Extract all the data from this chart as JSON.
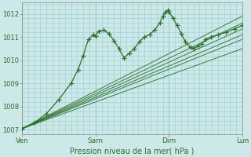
{
  "xlabel": "Pression niveau de la mer( hPa )",
  "background_color": "#cce8e8",
  "plot_bg_color": "#cce8e8",
  "grid_color": "#99cccc",
  "line_color": "#2d6e2d",
  "marker_color": "#2d6e2d",
  "ylim": [
    1006.8,
    1012.5
  ],
  "yticks": [
    1007,
    1008,
    1009,
    1010,
    1011,
    1012
  ],
  "day_labels": [
    "Ven",
    "Sam",
    "Dim",
    "Lun"
  ],
  "day_positions": [
    0,
    72,
    144,
    216
  ],
  "total_hours": 216,
  "forecast_starts": [
    1007.05,
    1007.05,
    1007.05,
    1007.05,
    1007.05,
    1007.05
  ],
  "forecast_ends": [
    1010.5,
    1010.9,
    1011.1,
    1011.35,
    1011.6,
    1011.9
  ],
  "obs_control_points": [
    [
      0,
      1007.05
    ],
    [
      12,
      1007.3
    ],
    [
      24,
      1007.7
    ],
    [
      36,
      1008.3
    ],
    [
      48,
      1009.0
    ],
    [
      55,
      1009.6
    ],
    [
      60,
      1010.2
    ],
    [
      65,
      1010.9
    ],
    [
      70,
      1011.1
    ],
    [
      72,
      1011.05
    ],
    [
      75,
      1011.25
    ],
    [
      80,
      1011.3
    ],
    [
      85,
      1011.15
    ],
    [
      90,
      1010.85
    ],
    [
      95,
      1010.5
    ],
    [
      100,
      1010.1
    ],
    [
      105,
      1010.3
    ],
    [
      110,
      1010.5
    ],
    [
      115,
      1010.8
    ],
    [
      120,
      1011.0
    ],
    [
      125,
      1011.1
    ],
    [
      130,
      1011.3
    ],
    [
      135,
      1011.6
    ],
    [
      138,
      1011.9
    ],
    [
      140,
      1012.05
    ],
    [
      143,
      1012.15
    ],
    [
      144,
      1012.1
    ],
    [
      148,
      1011.8
    ],
    [
      152,
      1011.5
    ],
    [
      156,
      1011.15
    ],
    [
      160,
      1010.8
    ],
    [
      165,
      1010.55
    ],
    [
      168,
      1010.5
    ],
    [
      172,
      1010.6
    ],
    [
      176,
      1010.7
    ],
    [
      180,
      1010.9
    ],
    [
      185,
      1011.0
    ],
    [
      192,
      1011.1
    ],
    [
      200,
      1011.2
    ],
    [
      208,
      1011.35
    ],
    [
      216,
      1011.5
    ]
  ]
}
